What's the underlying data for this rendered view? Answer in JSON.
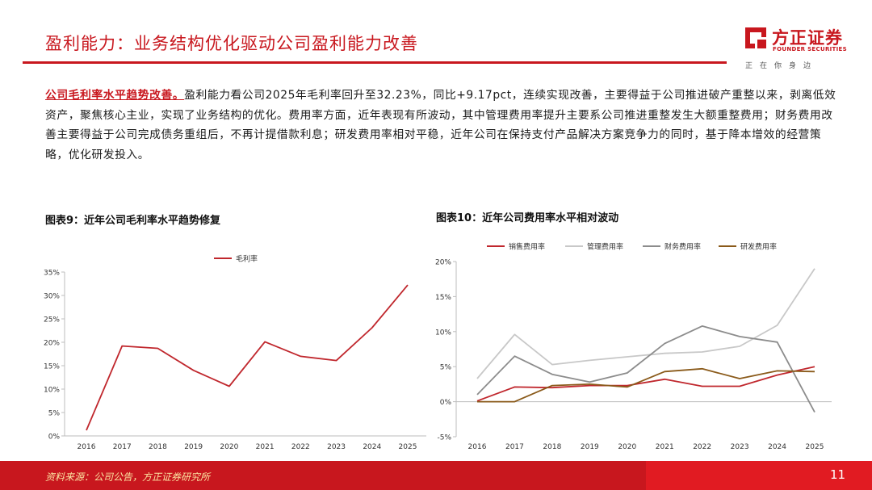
{
  "header": {
    "title": "盈利能力：业务结构优化驱动公司盈利能力改善",
    "logo_cn": "方正证券",
    "logo_en": "FOUNDER SECURITIES",
    "slogan": "正在你身边"
  },
  "body": {
    "lead": "公司毛利率水平趋势改善。",
    "text": "盈利能力看公司2025年毛利率回升至32.23%，同比+9.17pct，连续实现改善，主要得益于公司推进破产重整以来，剥离低效资产，聚焦核心主业，实现了业务结构的优化。费用率方面，近年表现有所波动，其中管理费用率提升主要系公司推进重整发生大额重整费用；财务费用改善主要得益于公司完成债务重组后，不再计提借款利息；研发费用率相对平稳，近年公司在保持支付产品解决方案竞争力的同时，基于降本增效的经营策略，优化研发投入。"
  },
  "chart_data": [
    {
      "title": "图表9：近年公司毛利率水平趋势修复",
      "type": "line",
      "x": [
        "2016",
        "2017",
        "2018",
        "2019",
        "2020",
        "2021",
        "2022",
        "2023",
        "2024",
        "2025"
      ],
      "series": [
        {
          "name": "毛利率",
          "color": "#c0272d",
          "values": [
            1.2,
            19.2,
            18.7,
            14.0,
            10.6,
            20.1,
            17.0,
            16.1,
            23.1,
            32.23
          ]
        }
      ],
      "ylim": [
        0,
        35
      ],
      "yticks": [
        "0%",
        "5%",
        "10%",
        "15%",
        "20%",
        "25%",
        "30%",
        "35%"
      ],
      "legend": "top-center"
    },
    {
      "title": "图表10：近年公司费用率水平相对波动",
      "type": "line",
      "x": [
        "2016",
        "2017",
        "2018",
        "2019",
        "2020",
        "2021",
        "2022",
        "2023",
        "2024",
        "2025"
      ],
      "series": [
        {
          "name": "销售费用率",
          "color": "#c0272d",
          "values": [
            0.1,
            2.1,
            2.0,
            2.3,
            2.3,
            3.2,
            2.2,
            2.2,
            3.8,
            5.0
          ]
        },
        {
          "name": "管理费用率",
          "color": "#c8c8c8",
          "values": [
            3.3,
            9.6,
            5.3,
            5.9,
            6.4,
            6.9,
            7.1,
            7.9,
            10.9,
            19.0
          ]
        },
        {
          "name": "财务费用率",
          "color": "#8c8c8c",
          "values": [
            1.0,
            6.5,
            3.9,
            2.8,
            4.1,
            8.3,
            10.8,
            9.3,
            8.5,
            -1.5
          ]
        },
        {
          "name": "研发费用率",
          "color": "#8a5a1a",
          "values": [
            0.0,
            0.0,
            2.3,
            2.5,
            2.1,
            4.3,
            4.7,
            3.3,
            4.4,
            4.3
          ]
        }
      ],
      "ylim": [
        -5,
        20
      ],
      "yticks": [
        "-5%",
        "0%",
        "5%",
        "10%",
        "15%",
        "20%"
      ],
      "legend": "top"
    }
  ],
  "footer": {
    "source": "资料来源：公司公告，方正证券研究所",
    "page": "11"
  }
}
